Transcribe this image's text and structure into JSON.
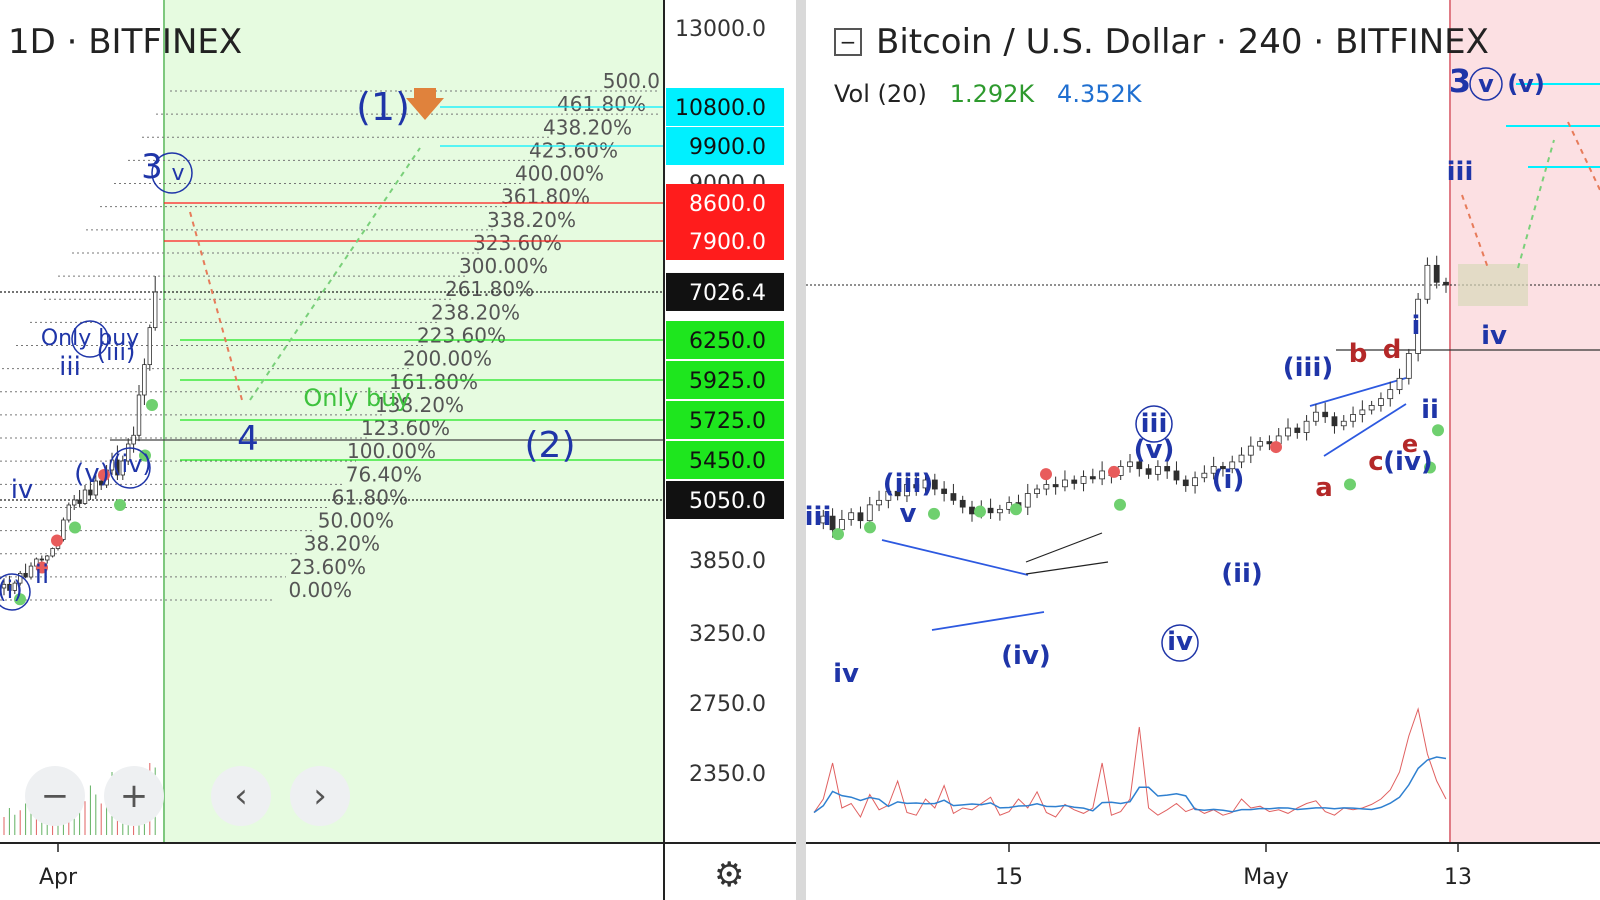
{
  "colors": {
    "projection_bg": "#e6fbe0",
    "projection_edge": "#7ec87e",
    "sell_zone_bg": "#fce0e3",
    "sell_zone_edge": "#e07b85",
    "wave_blue": "#1f35a8",
    "corrective_red": "#b42828",
    "cyan": "#00f0ff",
    "red_box": "#ff1c1c",
    "green_box": "#1ee61e",
    "up": "#2e2e2e",
    "buy_dot": "#6fd06f",
    "sell_dot": "#e85c5c"
  },
  "left": {
    "title_text": "1D · BITFINEX",
    "chart_data": {
      "type": "candlestick",
      "title": "1D · BITFINEX",
      "x_ticks": [
        "Apr"
      ],
      "y_ticks": [
        13000.0,
        3850.0,
        3250.0,
        2750.0,
        2350.0
      ],
      "price_labels": [
        {
          "value": "10800.0",
          "style": "cyan"
        },
        {
          "value": "9900.0",
          "style": "cyan"
        },
        {
          "value": "9000.0",
          "style": "plain"
        },
        {
          "value": "8600.0",
          "style": "red"
        },
        {
          "value": "7900.0",
          "style": "red"
        },
        {
          "value": "7026.4",
          "style": "black"
        },
        {
          "value": "6250.0",
          "style": "green"
        },
        {
          "value": "5925.0",
          "style": "green"
        },
        {
          "value": "5725.0",
          "style": "green"
        },
        {
          "value": "5450.0",
          "style": "green"
        },
        {
          "value": "5050.0",
          "style": "black"
        }
      ],
      "fib_levels": [
        "500.0",
        "461.80%",
        "438.20%",
        "423.60%",
        "400.00%",
        "361.80%",
        "338.20%",
        "323.60%",
        "300.00%",
        "261.80%",
        "238.20%",
        "223.60%",
        "200.00%",
        "161.80%",
        "138.20%",
        "123.60%",
        "100.00%",
        "76.40%",
        "61.80%",
        "50.00%",
        "38.20%",
        "23.60%",
        "0.00%"
      ],
      "annotations": [
        "(1)",
        "3",
        "v",
        "(2)",
        "4",
        "Only buy",
        "iii",
        "(iii)",
        "(v)",
        "(iv)",
        "iv",
        "(i)",
        "ii",
        "(ii)"
      ],
      "candles_ohlc": [
        [
          3620,
          3700,
          3560,
          3650
        ],
        [
          3650,
          3720,
          3600,
          3600
        ],
        [
          3600,
          3680,
          3570,
          3660
        ],
        [
          3660,
          3760,
          3640,
          3740
        ],
        [
          3740,
          3820,
          3700,
          3710
        ],
        [
          3710,
          3830,
          3690,
          3800
        ],
        [
          3800,
          3900,
          3770,
          3870
        ],
        [
          3870,
          3940,
          3820,
          3850
        ],
        [
          3850,
          3950,
          3820,
          3930
        ],
        [
          3930,
          4100,
          3900,
          4080
        ],
        [
          4080,
          4300,
          4040,
          4260
        ],
        [
          4260,
          4700,
          4220,
          4650
        ],
        [
          4650,
          5000,
          4600,
          4950
        ],
        [
          4950,
          5100,
          4850,
          5050
        ],
        [
          5050,
          5150,
          4900,
          4980
        ],
        [
          4980,
          5200,
          4950,
          5150
        ],
        [
          5150,
          5250,
          5050,
          5100
        ],
        [
          5100,
          5300,
          5060,
          5240
        ],
        [
          5240,
          5330,
          5150,
          5200
        ],
        [
          5200,
          5400,
          5170,
          5350
        ],
        [
          5350,
          5500,
          5300,
          5450
        ],
        [
          5450,
          5550,
          5250,
          5300
        ],
        [
          5300,
          5480,
          5250,
          5440
        ],
        [
          5440,
          5600,
          5400,
          5560
        ],
        [
          5560,
          5680,
          5500,
          5620
        ],
        [
          5620,
          5900,
          5580,
          5850
        ],
        [
          5850,
          6100,
          5800,
          6050
        ],
        [
          6050,
          6500,
          6000,
          6450
        ],
        [
          6450,
          7300,
          6400,
          7026
        ]
      ],
      "buy_signals": [
        3610,
        4700,
        5100,
        5550,
        5850
      ],
      "sell_signals": [
        3900,
        4440,
        5400
      ],
      "volume": [
        40,
        60,
        45,
        55,
        70,
        50,
        65,
        80,
        60,
        90,
        120,
        85,
        70,
        60,
        95,
        75,
        110,
        90,
        70,
        65,
        140,
        100,
        120,
        90,
        80,
        110,
        130,
        160,
        150
      ]
    }
  },
  "right": {
    "title_text": "Bitcoin / U.S. Dollar · 240 · BITFINEX",
    "vol_label": "Vol (20)",
    "vol_a": "1.292K",
    "vol_b": "4.352K",
    "chart_data": {
      "type": "candlestick",
      "title": "Bitcoin / U.S. Dollar · 240 · BITFINEX",
      "x_ticks": [
        "15",
        "May",
        "13"
      ],
      "annotations": [
        "iii",
        "iv",
        "(iii)",
        "v",
        "(iv)",
        "iii",
        "(v)",
        "iv",
        "(i)",
        "(ii)",
        "(iii)",
        "a",
        "b",
        "c",
        "d",
        "e",
        "(iv)",
        "i",
        "ii",
        "iii",
        "iv",
        "3",
        "v",
        "(v)"
      ],
      "close_path": [
        4920,
        4980,
        4860,
        4950,
        5010,
        4940,
        5080,
        5120,
        5200,
        5160,
        5260,
        5230,
        5300,
        5220,
        5180,
        5120,
        5060,
        5000,
        5050,
        5010,
        5040,
        5100,
        5060,
        5180,
        5220,
        5260,
        5240,
        5300,
        5270,
        5330,
        5310,
        5380,
        5340,
        5420,
        5460,
        5400,
        5350,
        5420,
        5380,
        5300,
        5250,
        5320,
        5360,
        5420,
        5400,
        5460,
        5520,
        5600,
        5640,
        5620,
        5690,
        5760,
        5720,
        5820,
        5900,
        5860,
        5780,
        5820,
        5880,
        5920,
        5960,
        6020,
        6100,
        6200,
        6420,
        6900,
        7200,
        7050,
        7026
      ],
      "buy_signals": [
        4980,
        5040,
        5160,
        5180,
        5200,
        5240,
        5420,
        5570,
        5900
      ],
      "sell_signals": [
        5440,
        5460,
        5680
      ],
      "volume": [
        25,
        40,
        80,
        30,
        35,
        20,
        45,
        28,
        33,
        60,
        25,
        22,
        40,
        30,
        55,
        24,
        30,
        28,
        35,
        42,
        22,
        26,
        40,
        30,
        48,
        25,
        20,
        34,
        28,
        24,
        30,
        80,
        22,
        26,
        40,
        120,
        30,
        22,
        28,
        35,
        26,
        30,
        24,
        28,
        22,
        25,
        40,
        30,
        32,
        26,
        28,
        24,
        30,
        35,
        38,
        26,
        22,
        30,
        28,
        30,
        34,
        40,
        50,
        70,
        110,
        140,
        90,
        60,
        40
      ]
    }
  }
}
